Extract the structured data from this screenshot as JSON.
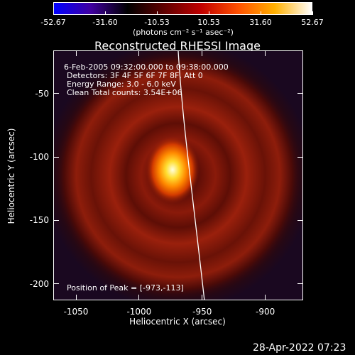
{
  "colorbar": {
    "ticks": [
      "-52.67",
      "-31.60",
      "-10.53",
      "10.53",
      "31.60",
      "52.67"
    ],
    "units": "(photons cm⁻² s⁻¹ asec⁻²)",
    "colors": [
      "#0000ff",
      "#4000a0",
      "#000000",
      "#600000",
      "#c00000",
      "#ff5000",
      "#ffb000",
      "#ffffff"
    ]
  },
  "plot": {
    "title": "Reconstructed RHESSI Image",
    "annotations": [
      " 6-Feb-2005 09:32:00.000 to 09:38:00.000",
      "Detectors: 3F 4F 5F 6F 7F 8F, Att 0",
      "Energy Range: 3.0 - 6.0 keV",
      "Clean    Total counts: 3.54E+06"
    ],
    "peak_position": "Position of Peak = [-973,-113]",
    "xlabel": "Heliocentric X (arcsec)",
    "ylabel": "Heliocentric Y (arcsec)",
    "xticks": [
      "-1050",
      "-1000",
      "-950",
      "-900"
    ],
    "yticks": [
      "-50",
      "-100",
      "-150",
      "-200"
    ],
    "xrange": [
      -1068,
      -870
    ],
    "yrange": [
      -213,
      -16
    ]
  },
  "footer": {
    "date": "28-Apr-2022 07:23"
  }
}
